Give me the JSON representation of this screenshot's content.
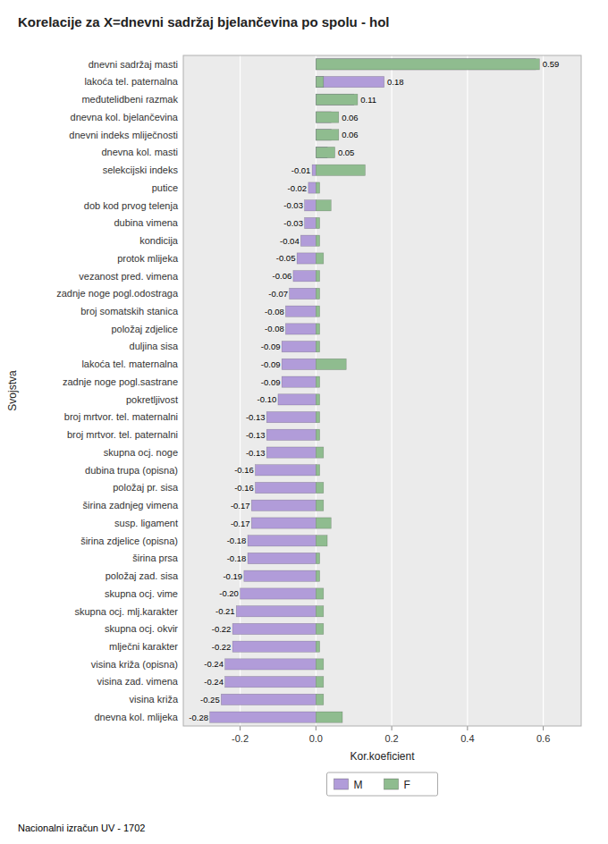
{
  "chart_data": {
    "type": "bar",
    "orientation": "horizontal",
    "title": "Korelacije za X=dnevni sadržaj bjelančevina po spolu - hol",
    "x_label": "Kor.koeficient",
    "y_label": "Svojstva",
    "annotations": [
      "Nacionalni izračun UV - 1702"
    ],
    "categories": [
      "dnevni sadržaj masti",
      "lakoća tel. paternalna",
      "međutelidbeni razmak",
      "dnevna kol. bjelančevina",
      "dnevni indeks mliječnosti",
      "dnevna kol. masti",
      "selekcijski indeks",
      "putice",
      "dob kod prvog telenja",
      "dubina vimena",
      "kondicija",
      "protok mlijeka",
      "vezanost pred. vimena",
      "zadnje noge pogl.odostraga",
      "broj somatskih stanica",
      "položaj zdjelice",
      "duljina sisa",
      "lakoća tel. maternalna",
      "zadnje noge pogl.sastrane",
      "pokretljivost",
      "broj mrtvor. tel. maternalni",
      "broj mrtvor. tel. paternalni",
      "skupna ocj. noge",
      "dubina trupa (opisna)",
      "položaj pr. sisa",
      "širina zadnjeg vimena",
      "susp. ligament",
      "širina zdjelice (opisna)",
      "širina prsa",
      "položaj zad. sisa",
      "skupna ocj. vime",
      "skupna ocj. mlj.karakter",
      "skupna ocj. okvir",
      "mlječni karakter",
      "visina križa (opisna)",
      "visina zad. vimena",
      "visina križa",
      "dnevna kol. mlijeka"
    ],
    "series": [
      {
        "name": "M",
        "color": "#b19cd9",
        "values": [
          0.58,
          0.18,
          0.1,
          0.04,
          0.04,
          0.03,
          -0.01,
          -0.02,
          -0.03,
          -0.03,
          -0.04,
          -0.05,
          -0.06,
          -0.07,
          -0.08,
          -0.08,
          -0.09,
          -0.09,
          -0.09,
          -0.1,
          -0.13,
          -0.13,
          -0.13,
          -0.16,
          -0.16,
          -0.17,
          -0.17,
          -0.18,
          -0.18,
          -0.19,
          -0.2,
          -0.21,
          -0.22,
          -0.22,
          -0.24,
          -0.24,
          -0.25,
          -0.28
        ],
        "value_labels": [
          null,
          "0.18",
          null,
          null,
          null,
          null,
          "-0.01",
          "-0.02",
          "-0.03",
          "-0.03",
          "-0.04",
          "-0.05",
          "-0.06",
          "-0.07",
          "-0.08",
          "-0.08",
          "-0.09",
          "-0.09",
          "-0.09",
          "-0.10",
          "-0.13",
          "-0.13",
          "-0.13",
          "-0.16",
          "-0.16",
          "-0.17",
          "-0.17",
          "-0.18",
          "-0.18",
          "-0.19",
          "-0.20",
          "-0.21",
          "-0.22",
          "-0.22",
          "-0.24",
          "-0.24",
          "-0.25",
          "-0.28"
        ]
      },
      {
        "name": "F",
        "color": "#8fbc8f",
        "values": [
          0.59,
          0.02,
          0.11,
          0.06,
          0.06,
          0.05,
          0.13,
          0.01,
          0.04,
          0.01,
          0.01,
          0.02,
          0.01,
          0.01,
          0.01,
          0.01,
          0.01,
          0.08,
          0.01,
          0.01,
          0.01,
          0.01,
          0.02,
          0.01,
          0.02,
          0.02,
          0.04,
          0.03,
          0.01,
          0.01,
          0.02,
          0.02,
          0.02,
          0.01,
          0.02,
          0.02,
          0.02,
          0.07
        ],
        "value_labels": [
          "0.59",
          null,
          "0.11",
          "0.06",
          "0.06",
          "0.05",
          null,
          null,
          null,
          null,
          null,
          null,
          null,
          null,
          null,
          null,
          null,
          null,
          null,
          null,
          null,
          null,
          null,
          null,
          null,
          null,
          null,
          null,
          null,
          null,
          null,
          null,
          null,
          null,
          null,
          null,
          null,
          null
        ]
      }
    ],
    "xlim": [
      -0.35,
      0.7
    ],
    "xticks": [
      -0.2,
      {
        "value": 0,
        "label": "0.0"
      },
      0.2,
      0.4,
      0.6
    ],
    "grid": true,
    "legend": "bottom",
    "data_labels": true
  }
}
